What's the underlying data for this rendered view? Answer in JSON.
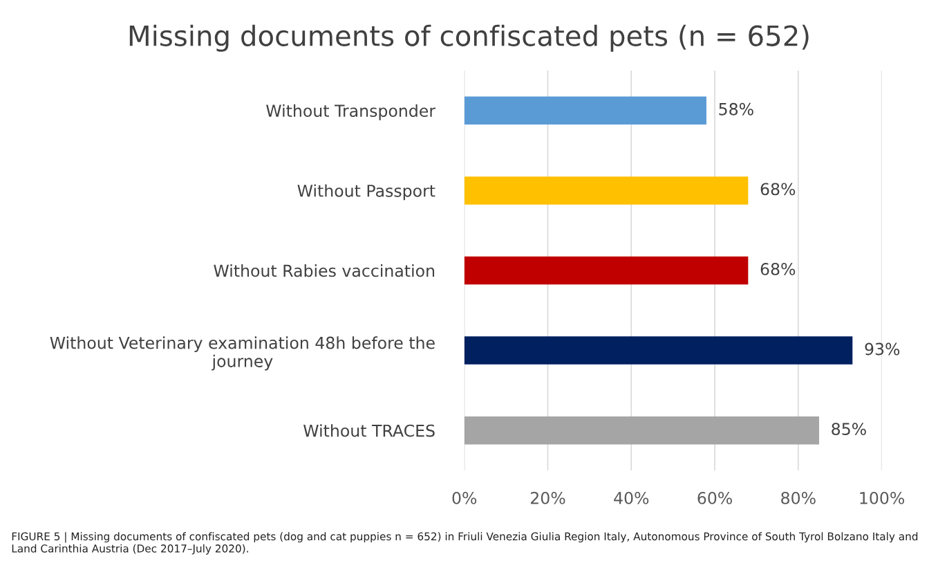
{
  "chart_data": {
    "type": "bar",
    "orientation": "horizontal",
    "title": "Missing documents of confiscated pets (n = 652)",
    "categories": [
      "Without Transponder",
      "Without Passport",
      "Without Rabies vaccination",
      "Without Veterinary examination 48h before the journey",
      "Without TRACES"
    ],
    "values": [
      58,
      68,
      68,
      93,
      85
    ],
    "colors": [
      "#5b9bd5",
      "#ffc000",
      "#c00000",
      "#002060",
      "#a5a5a5"
    ],
    "value_labels": [
      "58%",
      "68%",
      "68%",
      "93%",
      "85%"
    ],
    "xlim": [
      0,
      100
    ],
    "xticks": [
      {
        "value": 0,
        "label": "0%"
      },
      {
        "value": 20,
        "label": "20%"
      },
      {
        "value": 40,
        "label": "40%"
      },
      {
        "value": 60,
        "label": "60%"
      },
      {
        "value": 80,
        "label": "80%"
      },
      {
        "value": 100,
        "label": "100%"
      }
    ],
    "grid": "x",
    "annotations": [
      "FIGURE 5 | Missing documents of confiscated pets (dog and cat puppies n = 652) in Friuli Venezia Giulia Region Italy, Autonomous Province of South Tyrol Bolzano Italy and Land Carinthia Austria (Dec 2017–July 2020)."
    ]
  }
}
